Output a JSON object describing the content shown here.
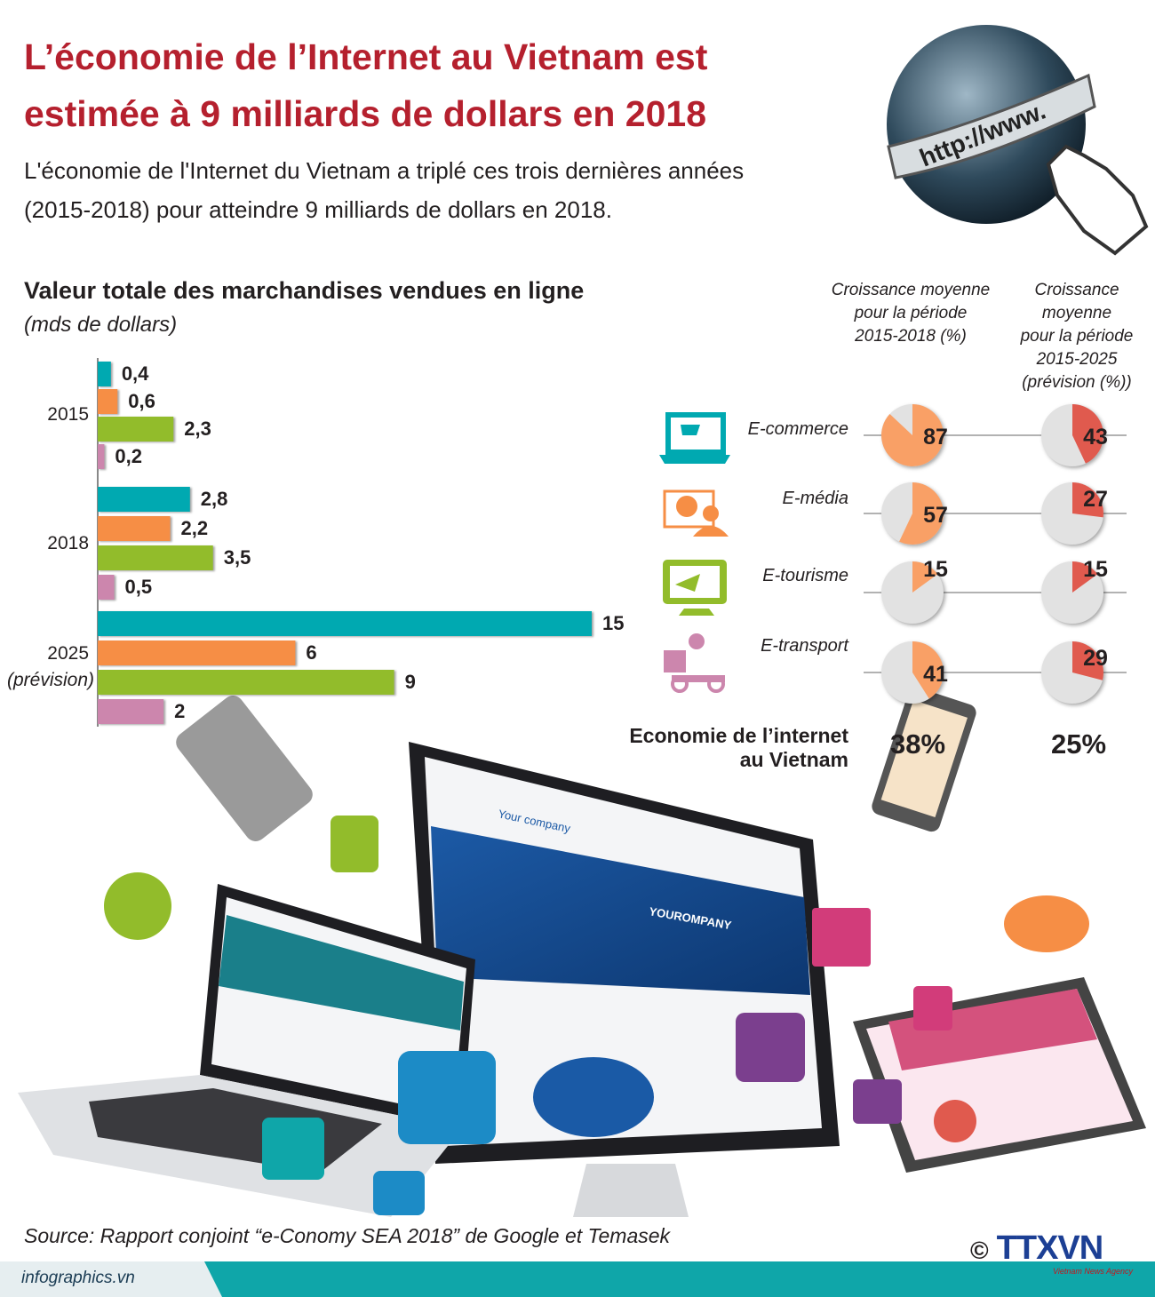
{
  "header": {
    "title_line1": "L’économie de l’Internet au Vietnam est",
    "title_line2": "estimée à 9 milliards de dollars en 2018",
    "subtitle_line1": "L'économie de l'Internet du Vietnam a triplé ces trois dernières années",
    "subtitle_line2": "(2015-2018) pour atteindre 9 milliards de dollars en 2018.",
    "globe_text": "http://www."
  },
  "chart_data": [
    {
      "type": "bar",
      "orientation": "horizontal",
      "title": "Valeur totale des marchandises vendues en ligne",
      "unit": "(mds de dollars)",
      "categories": [
        "2015",
        "2018",
        "2025"
      ],
      "category_notes": [
        "",
        "",
        "(prévision)"
      ],
      "series": [
        {
          "color": "#00a9b1",
          "values": [
            0.4,
            2.8,
            15
          ],
          "labels": [
            "0,4",
            "2,8",
            "15"
          ]
        },
        {
          "color": "#f68e45",
          "values": [
            0.6,
            2.2,
            6
          ],
          "labels": [
            "0,6",
            "2,2",
            "6"
          ]
        },
        {
          "color": "#92bc2b",
          "values": [
            2.3,
            3.5,
            9
          ],
          "labels": [
            "2,3",
            "3,5",
            "9"
          ]
        },
        {
          "color": "#cc86ad",
          "values": [
            0.2,
            0.5,
            2
          ],
          "labels": [
            "0,2",
            "0,5",
            "2"
          ]
        }
      ],
      "xlim": [
        0,
        15
      ]
    },
    {
      "type": "pie",
      "columns": [
        {
          "header": [
            "Croissance moyenne",
            "pour la période",
            "2015-2018 (%)"
          ],
          "color": "#f9a066"
        },
        {
          "header": [
            "Croissance",
            "moyenne",
            "pour la période",
            "2015-2025",
            "(prévision (%))"
          ],
          "color": "#e05a4e"
        }
      ],
      "rows": [
        {
          "label": "E-commerce",
          "icon": "laptop-cart-icon",
          "icon_color": "#00a9b1",
          "values": [
            87,
            43
          ]
        },
        {
          "label": "E-média",
          "icon": "monitor-globe-user-icon",
          "icon_color": "#f68e45",
          "values": [
            57,
            27
          ]
        },
        {
          "label": "E-tourisme",
          "icon": "monitor-plane-icon",
          "icon_color": "#92bc2b",
          "values": [
            15,
            15
          ]
        },
        {
          "label": "E-transport",
          "icon": "delivery-scooter-icon",
          "icon_color": "#cc86ad",
          "values": [
            41,
            29
          ]
        }
      ],
      "rest_color": "#e2e2e2",
      "total": {
        "label_line1": "Economie de l’internet",
        "label_line2": "au Vietnam",
        "values": [
          "38%",
          "25%"
        ]
      }
    }
  ],
  "footer": {
    "source": "Source: Rapport  conjoint “e-Conomy SEA 2018” de Google et Temasek",
    "site": "infographics.vn",
    "copyright": "©",
    "logo_text": "TTXVN",
    "logo_sub": "Vietnam News Agency"
  },
  "illustration": {
    "brand": "Your company",
    "banner": "YOUROMPANY"
  }
}
